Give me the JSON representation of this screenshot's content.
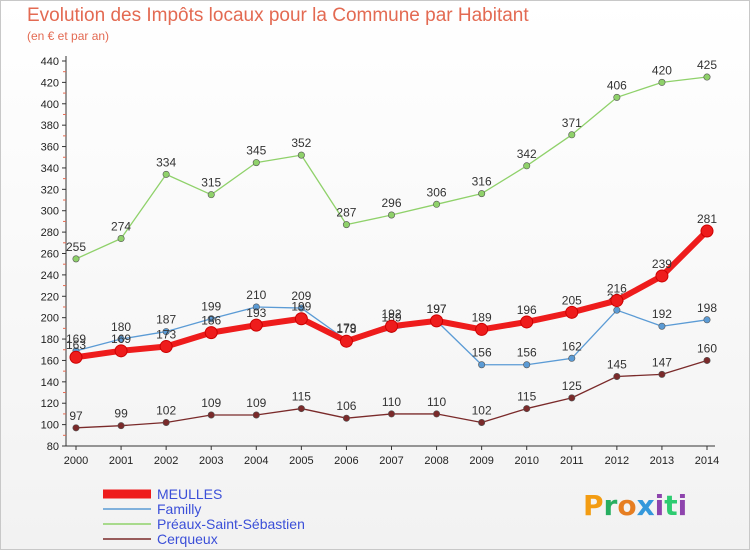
{
  "title": "Evolution des Impôts locaux pour la Commune par Habitant",
  "subtitle": "(en € et par an)",
  "logo_text": "Proxiti",
  "chart_data": {
    "type": "line",
    "title": "Evolution des Impôts locaux pour la Commune par Habitant",
    "subtitle": "(en € et par an)",
    "xlabel": "",
    "ylabel": "",
    "x": [
      "2000",
      "2001",
      "2002",
      "2003",
      "2004",
      "2005",
      "2006",
      "2007",
      "2008",
      "2009",
      "2010",
      "2011",
      "2012",
      "2013",
      "2014"
    ],
    "ylim": [
      80,
      440
    ],
    "yticks": [
      80,
      100,
      120,
      140,
      160,
      180,
      200,
      220,
      240,
      260,
      280,
      300,
      320,
      340,
      360,
      380,
      400,
      420,
      440
    ],
    "grid": false,
    "legend_position": "bottom-left",
    "series": [
      {
        "name": "MEULLES",
        "color": "#ee1c1c",
        "values": [
          163,
          169,
          173,
          186,
          193,
          199,
          178,
          192,
          197,
          189,
          196,
          205,
          216,
          239,
          281
        ]
      },
      {
        "name": "Familly",
        "color": "#5b9bd5",
        "values": [
          169,
          180,
          187,
          199,
          210,
          209,
          179,
          189,
          197,
          156,
          156,
          162,
          207,
          192,
          198
        ]
      },
      {
        "name": "Préaux-Saint-Sébastien",
        "color": "#8fd16a",
        "values": [
          255,
          274,
          334,
          315,
          345,
          352,
          287,
          296,
          306,
          316,
          342,
          371,
          406,
          420,
          425
        ]
      },
      {
        "name": "Cerqueux",
        "color": "#7a2a2a",
        "values": [
          97,
          99,
          102,
          109,
          109,
          115,
          106,
          110,
          110,
          102,
          115,
          125,
          145,
          147,
          160
        ]
      }
    ]
  }
}
